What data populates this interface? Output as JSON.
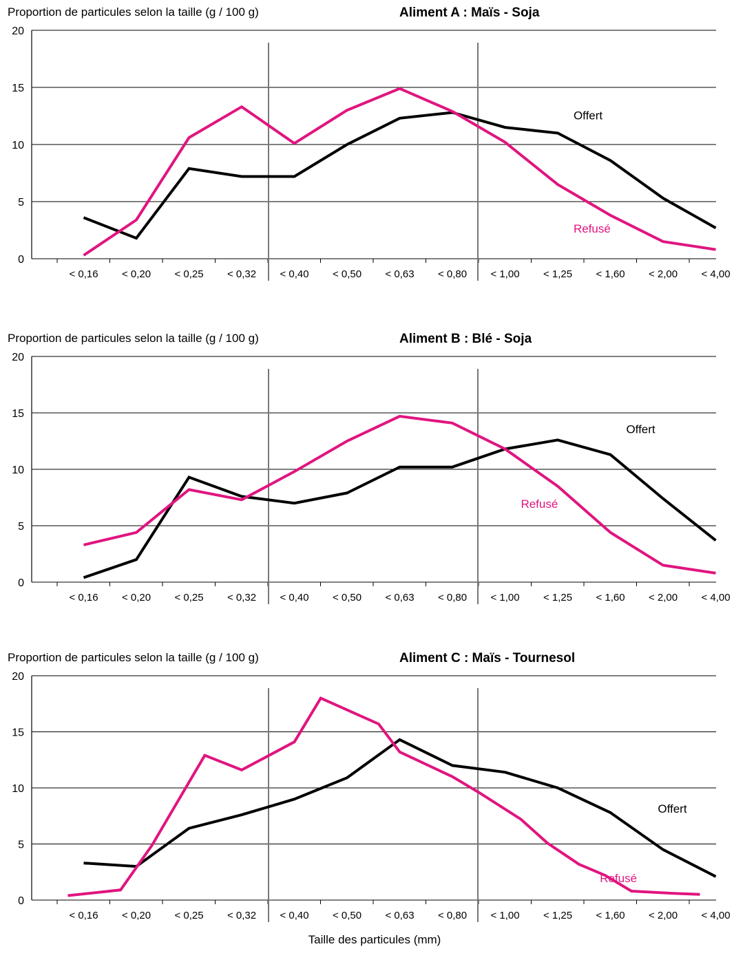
{
  "colors": {
    "offert": "#000000",
    "refuse": "#e0157f",
    "grid": "#000000",
    "divider": "#777777"
  },
  "x_axis_label": "Taille des particules (mm)",
  "chart_data": [
    {
      "type": "line",
      "title": "Aliment A : Maïs - Soja",
      "ylabel": "Proportion de particules selon la taille (g / 100 g)",
      "ylim": [
        0,
        20
      ],
      "yticks": [
        "0",
        "5",
        "10",
        "15",
        "20"
      ],
      "categories": [
        "< 0,16",
        "< 0,20",
        "< 0,25",
        "< 0,32",
        "< 0,40",
        "< 0,50",
        "< 0,63",
        "< 0,80",
        "< 1,00",
        "< 1,25",
        "< 1,60",
        "< 2,00",
        "< 4,00"
      ],
      "series": [
        {
          "name": "Offert",
          "x": [
            0,
            1,
            2,
            3,
            4,
            5,
            6,
            7,
            8,
            9,
            10,
            11,
            12
          ],
          "values": [
            3.6,
            1.8,
            7.9,
            7.2,
            7.2,
            10.0,
            12.3,
            12.8,
            11.5,
            11.0,
            8.6,
            5.3,
            2.7
          ]
        },
        {
          "name": "Refusé",
          "x": [
            0,
            1,
            2,
            3,
            4,
            5,
            6,
            7,
            8,
            9,
            10,
            11,
            12
          ],
          "values": [
            0.3,
            3.4,
            10.6,
            13.3,
            10.1,
            13.0,
            14.9,
            12.9,
            10.2,
            6.5,
            3.8,
            1.5,
            0.8
          ]
        }
      ]
    },
    {
      "type": "line",
      "title": "Aliment B : Blé - Soja",
      "ylabel": "Proportion de particules selon la taille (g / 100 g)",
      "ylim": [
        0,
        20
      ],
      "yticks": [
        "0",
        "5",
        "10",
        "15",
        "20"
      ],
      "categories": [
        "< 0,16",
        "< 0,20",
        "< 0,25",
        "< 0,32",
        "< 0,40",
        "< 0,50",
        "< 0,63",
        "< 0,80",
        "< 1,00",
        "< 1,25",
        "< 1,60",
        "< 2,00",
        "< 4,00"
      ],
      "series": [
        {
          "name": "Offert",
          "x": [
            0,
            1,
            2,
            3,
            4,
            5,
            6,
            7,
            8,
            9,
            10,
            11,
            12
          ],
          "values": [
            0.4,
            2.0,
            9.3,
            7.6,
            7.0,
            7.9,
            10.2,
            10.2,
            11.8,
            12.6,
            11.3,
            7.4,
            3.7
          ]
        },
        {
          "name": "Refusé",
          "x": [
            0,
            1,
            2,
            3,
            4,
            5,
            6,
            7,
            8,
            9,
            10,
            11,
            12
          ],
          "values": [
            3.3,
            4.4,
            8.2,
            7.3,
            9.8,
            12.5,
            14.7,
            14.1,
            11.8,
            8.5,
            4.4,
            1.5,
            0.8
          ]
        }
      ]
    },
    {
      "type": "line",
      "title": "Aliment C : Maïs - Tournesol",
      "ylabel": "Proportion de particules selon la taille (g / 100 g)",
      "ylim": [
        0,
        20
      ],
      "yticks": [
        "0",
        "5",
        "10",
        "15",
        "20"
      ],
      "categories": [
        "< 0,16",
        "< 0,20",
        "< 0,25",
        "< 0,32",
        "< 0,40",
        "< 0,50",
        "< 0,63",
        "< 0,80",
        "< 1,00",
        "< 1,25",
        "< 1,60",
        "< 2,00",
        "< 4,00"
      ],
      "series": [
        {
          "name": "Offert",
          "x": [
            0,
            1,
            2,
            3,
            4,
            5,
            6,
            7,
            8,
            9,
            10,
            11,
            12
          ],
          "values": [
            3.3,
            3.0,
            6.4,
            7.6,
            9.0,
            10.9,
            14.3,
            12.0,
            11.4,
            10.0,
            7.8,
            4.5,
            2.1
          ]
        },
        {
          "name": "Refusé",
          "x": [
            -0.3,
            0.7,
            1.3,
            2.3,
            3.0,
            4.0,
            4.5,
            5.6,
            6.0,
            7.0,
            7.5,
            8.3,
            8.8,
            9.4,
            9.9,
            10.4,
            11.2,
            11.7
          ],
          "values": [
            0.4,
            0.9,
            4.9,
            12.9,
            11.6,
            14.1,
            18.0,
            15.7,
            13.2,
            11.0,
            9.6,
            7.2,
            5.1,
            3.2,
            2.2,
            0.8,
            0.6,
            0.5
          ]
        }
      ]
    }
  ],
  "label_positions": [
    {
      "offert": [
        9.3,
        12.2
      ],
      "refuse": [
        9.3,
        2.3
      ]
    },
    {
      "offert": [
        10.3,
        13.2
      ],
      "refuse": [
        8.3,
        6.6
      ]
    },
    {
      "offert": [
        10.9,
        7.8
      ],
      "refuse": [
        9.8,
        1.6
      ]
    }
  ]
}
